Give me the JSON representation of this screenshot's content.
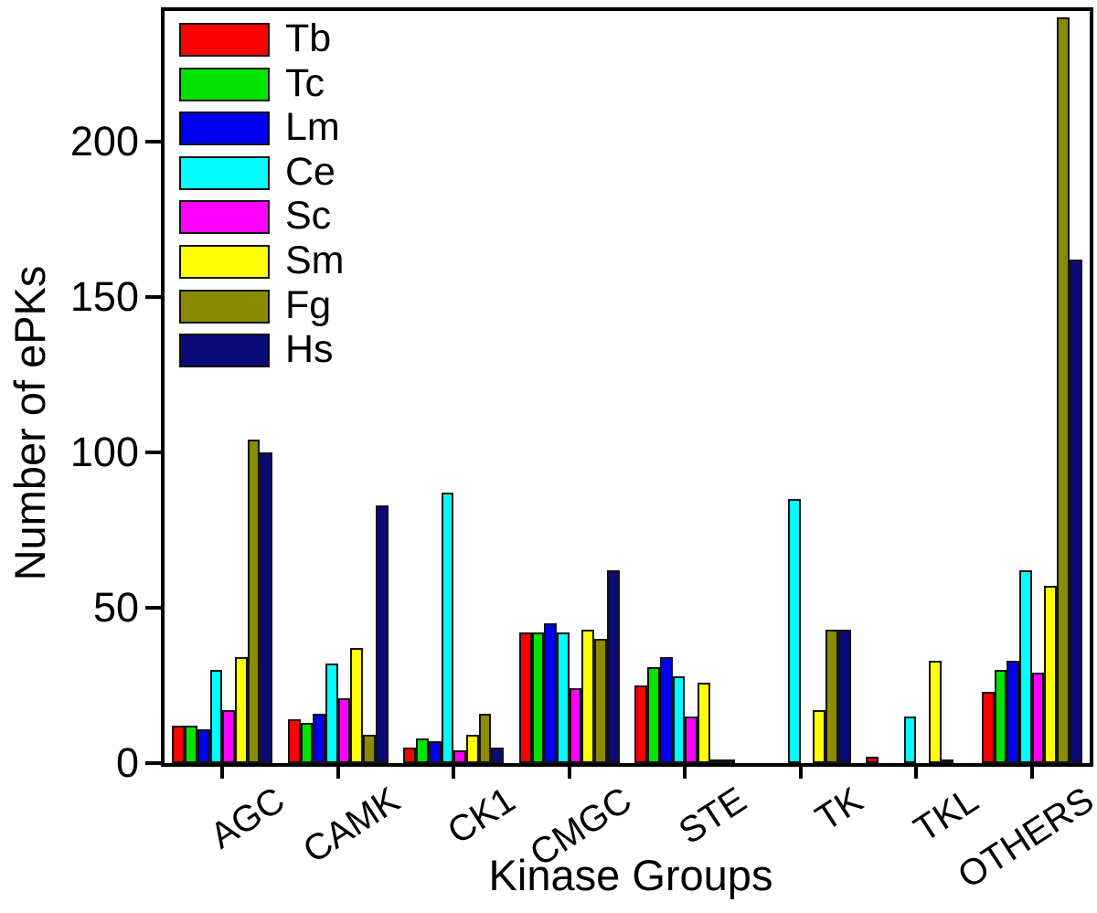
{
  "chart_data": {
    "type": "bar",
    "title": "",
    "xlabel": "Kinase Groups",
    "ylabel": "Number of ePKs",
    "categories": [
      "AGC",
      "CAMK",
      "CK1",
      "CMGC",
      "STE",
      "TK",
      "TKL",
      "OTHERS"
    ],
    "series": [
      {
        "name": "Tb",
        "color": "#FF0000",
        "values": [
          12,
          14,
          5,
          42,
          25,
          0,
          2,
          23
        ]
      },
      {
        "name": "Tc",
        "color": "#00E400",
        "values": [
          12,
          13,
          8,
          42,
          31,
          0,
          0,
          30
        ]
      },
      {
        "name": "Lm",
        "color": "#0000F0",
        "values": [
          11,
          16,
          7,
          45,
          34,
          0,
          0,
          33
        ]
      },
      {
        "name": "Ce",
        "color": "#00FFFF",
        "values": [
          30,
          32,
          87,
          42,
          28,
          85,
          15,
          62
        ]
      },
      {
        "name": "Sc",
        "color": "#FF00FF",
        "values": [
          17,
          21,
          4,
          24,
          15,
          0,
          0,
          29
        ]
      },
      {
        "name": "Sm",
        "color": "#FFFF00",
        "values": [
          34,
          37,
          9,
          43,
          26,
          17,
          33,
          57
        ]
      },
      {
        "name": "Fg",
        "color": "#8B8B00",
        "values": [
          104,
          9,
          16,
          40,
          1,
          43,
          1,
          240
        ]
      },
      {
        "name": "Hs",
        "color": "#0A0A78",
        "values": [
          100,
          83,
          5,
          62,
          1,
          43,
          0,
          162
        ]
      }
    ],
    "ylim": [
      0,
      242
    ],
    "yticks": [
      0,
      50,
      100,
      150,
      200
    ],
    "legend_position": "top-left",
    "grid": false,
    "axis_color": "#000000",
    "background_color": "#FFFFFF"
  }
}
